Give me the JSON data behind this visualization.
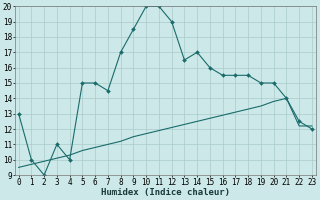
{
  "title": "",
  "xlabel": "Humidex (Indice chaleur)",
  "bg_color": "#cce8e8",
  "grid_color": "#aacccc",
  "line_color": "#1a6b6b",
  "x_line1": [
    0,
    1,
    2,
    3,
    4,
    5,
    6,
    7,
    8,
    9,
    10,
    11,
    12,
    13,
    14,
    15,
    16,
    17,
    18,
    19,
    20,
    21,
    22,
    23
  ],
  "y_line1": [
    13,
    10,
    9,
    11,
    10,
    15,
    15,
    14.5,
    17,
    18.5,
    20,
    20,
    19,
    16.5,
    17,
    16,
    15.5,
    15.5,
    15.5,
    15,
    15,
    14,
    12.5,
    12
  ],
  "x_line2": [
    0,
    1,
    2,
    3,
    4,
    5,
    6,
    7,
    8,
    9,
    10,
    11,
    12,
    13,
    14,
    15,
    16,
    17,
    18,
    19,
    20,
    21,
    22,
    23
  ],
  "y_line2": [
    9.5,
    9.7,
    9.9,
    10.1,
    10.3,
    10.6,
    10.8,
    11.0,
    11.2,
    11.5,
    11.7,
    11.9,
    12.1,
    12.3,
    12.5,
    12.7,
    12.9,
    13.1,
    13.3,
    13.5,
    13.8,
    14.0,
    12.2,
    12.2
  ],
  "xlim": [
    0,
    23
  ],
  "ylim": [
    9,
    20
  ],
  "yticks": [
    9,
    10,
    11,
    12,
    13,
    14,
    15,
    16,
    17,
    18,
    19,
    20
  ],
  "xticks": [
    0,
    1,
    2,
    3,
    4,
    5,
    6,
    7,
    8,
    9,
    10,
    11,
    12,
    13,
    14,
    15,
    16,
    17,
    18,
    19,
    20,
    21,
    22,
    23
  ],
  "tick_fontsize": 5.5,
  "xlabel_fontsize": 6.5
}
